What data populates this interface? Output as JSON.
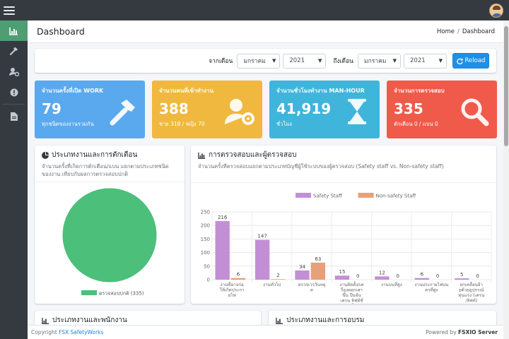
{
  "header": {
    "menu_icon": "hamburger-icon",
    "avatar_icon": "user-avatar"
  },
  "sidebar": {
    "items": [
      {
        "icon": "bar-chart-icon",
        "active": true
      },
      {
        "icon": "hammer-icon",
        "active": false
      },
      {
        "icon": "user-gear-icon",
        "active": false
      },
      {
        "icon": "alert-circle-icon",
        "active": false
      },
      {
        "icon": "document-icon",
        "active": false
      }
    ]
  },
  "page": {
    "title": "Dashboard",
    "breadcrumb": [
      "Home",
      "Dashboard"
    ]
  },
  "filter": {
    "from_label": "จากเดือน",
    "from_month": "มกราคม",
    "from_year": "2021",
    "to_label": "ถึงเดือน",
    "to_month": "มกราคม",
    "to_year": "2021",
    "reload_label": "Reload"
  },
  "stats": [
    {
      "title": "จำนวนครั้งที่เปิด WORK",
      "value": "79",
      "sub": "ทุกชนิดของงานรวมกัน",
      "icon": "hammer-icon",
      "color": "#5aa9ee"
    },
    {
      "title": "จำนวนคนที่เข้าทำงาน",
      "value": "388",
      "sub": "ชาย 318 / หญิง 70",
      "icon": "user-gear-icon",
      "color": "#f0b83e"
    },
    {
      "title": "จำนวนชั่วโมงทำงาน MAN-HOUR",
      "value": "41,919",
      "sub": "ชั่วโมง",
      "icon": "hourglass-icon",
      "color": "#3fb5dc"
    },
    {
      "title": "จำนวนการตรวจสอบ",
      "value": "335",
      "sub": "ตักเตือน 0 / แบน 0",
      "icon": "search-icon",
      "color": "#f05a4a"
    }
  ],
  "pie_card": {
    "title": "ประเภทงานและการตักเตือน",
    "subtitle": "จำนวนครั้งที่เกิดการตักเตือน/แบน แยกตามประเภทชนิดของงาน เทียบกับผลการตรวจสอบปกติ"
  },
  "bar_card": {
    "title": "การตรวจสอบและผู้ตรวจสอบ",
    "subtitle": "จำนวนครั้งที่ตรวจสอบแยกตามประเภทบัญชีผู้ใช้ระบบของผู้ตรวจสอบ (Safety staff vs. Non-safety staff)"
  },
  "bottom_cards": [
    "ประเภทงานและพนักงาน",
    "ประเภทงานและการอบรม"
  ],
  "footer": {
    "copyright": "Copyright",
    "company": "FSX SafetyWorks",
    "powered": "Powered by",
    "server": "FSXIO Server"
  },
  "chart_data": [
    {
      "type": "pie",
      "labels": [
        "ตรวจสอบปกติ (335)"
      ],
      "values": [
        335
      ],
      "colors": [
        "#4cbf7a"
      ],
      "legend": "bottom"
    },
    {
      "type": "bar",
      "categories": [
        [
          "งานที่อาจก่อ",
          "ให้เกิดประกา",
          "ยไฟ"
        ],
        [
          "งานทั่วไป"
        ],
        [
          "ตรวจเวรวันหยุ",
          "ด"
        ],
        [
          "งานติดตั้ง/เค",
          "รื่องตอกเสา",
          "ขึ้น ปีนจัน",
          "เครน ลิฟท์ชั่",
          "วคราวในการ",
          "ก่อสร้าง"
        ],
        [
          "งานบนที่สูง"
        ],
        [
          "งานประกายไฟบน",
          "ดรที่สูง"
        ],
        [
          "ยกเคลื่อนย้า",
          "ยด้วยอุปกรณ์",
          "ทุ่นแรง (เครน",
          "/ลิฟท์)"
        ]
      ],
      "series": [
        {
          "name": "Safety Staff",
          "color": "#c38fd4",
          "values": [
            216,
            147,
            34,
            15,
            12,
            6,
            5
          ]
        },
        {
          "name": "Non-safety Staff",
          "color": "#e6a07a",
          "values": [
            6,
            2,
            63,
            0,
            0,
            0,
            0
          ]
        }
      ],
      "ylim": [
        0,
        250
      ],
      "yticks": [
        0,
        50,
        100,
        150,
        200,
        250
      ],
      "legend": "top",
      "grid": true
    }
  ]
}
